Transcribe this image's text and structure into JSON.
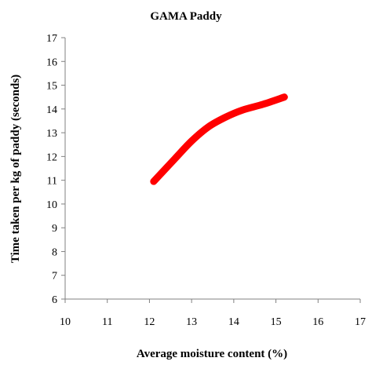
{
  "chart_data": {
    "type": "line",
    "title": "GAMA Paddy",
    "xlabel": "Average moisture content (%)",
    "ylabel": "Time taken per kg of paddy (seconds)",
    "xlim": [
      10,
      17
    ],
    "ylim": [
      6,
      17
    ],
    "xticks": [
      "10",
      "11",
      "12",
      "13",
      "14",
      "15",
      "16",
      "17"
    ],
    "yticks": [
      "6",
      "7",
      "8",
      "9",
      "10",
      "11",
      "12",
      "13",
      "14",
      "15",
      "16",
      "17"
    ],
    "grid": false,
    "legend": "none",
    "series": [
      {
        "color": "#ff0000",
        "x": [
          12.1,
          12.6,
          13.0,
          13.4,
          13.8,
          14.2,
          14.7,
          15.2
        ],
        "y": [
          10.95,
          11.9,
          12.65,
          13.25,
          13.65,
          13.95,
          14.2,
          14.5
        ]
      }
    ]
  }
}
